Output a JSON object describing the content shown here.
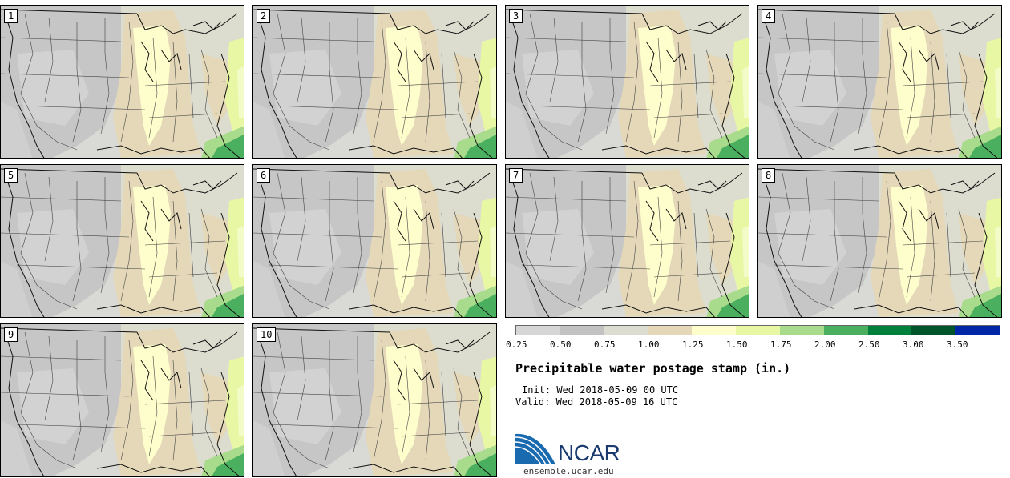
{
  "panels": [
    {
      "label": "1"
    },
    {
      "label": "2"
    },
    {
      "label": "3"
    },
    {
      "label": "4"
    },
    {
      "label": "5"
    },
    {
      "label": "6"
    },
    {
      "label": "7"
    },
    {
      "label": "8"
    },
    {
      "label": "9"
    },
    {
      "label": "10"
    }
  ],
  "colorbar": {
    "colors": [
      "#d6d6d6",
      "#c2c2c2",
      "#dcdcd0",
      "#e4d8b8",
      "#fefecc",
      "#e8f7a4",
      "#a8dc8c",
      "#4aaf5e",
      "#00803a",
      "#00562a",
      "#0026a8"
    ],
    "ticks": [
      "0.25",
      "0.50",
      "0.75",
      "1.00",
      "1.25",
      "1.50",
      "1.75",
      "2.00",
      "2.50",
      "3.00",
      "3.50"
    ]
  },
  "title": "Precipitable water postage stamp (in.)",
  "init": "Init: Wed 2018-05-09 00 UTC",
  "valid": "Valid: Wed 2018-05-09 16 UTC",
  "logo": {
    "text": "NCAR"
  },
  "url": "ensemble.ucar.edu"
}
